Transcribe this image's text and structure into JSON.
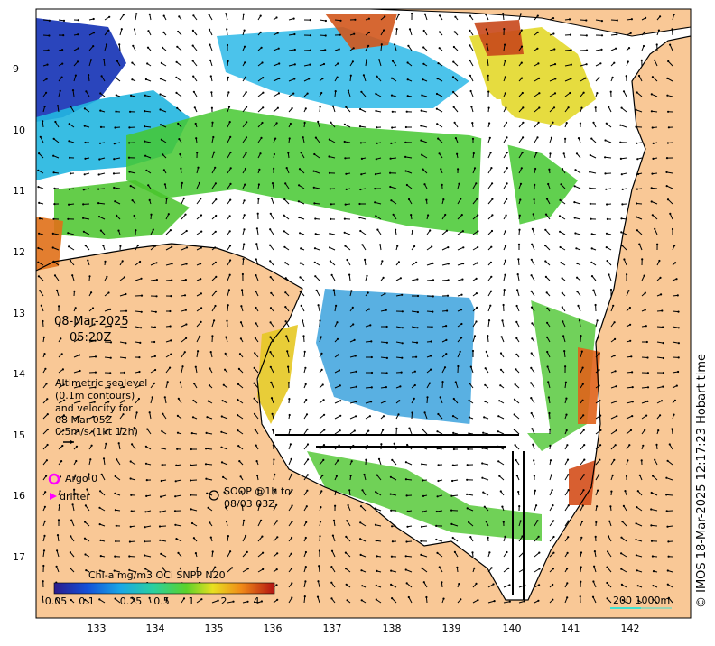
{
  "map": {
    "date": "08-Mar-2025",
    "time": "05:20Z",
    "legend_lines": [
      "Altimetric sealevel",
      "(0.1m contours)",
      "and velocity for",
      "08 Mar 05Z",
      "0.5m/s (1kt 12h)"
    ],
    "argo_label": "Argo 0",
    "drifter_label": "drifter",
    "soop_lines": [
      "SOOP @1h to",
      "08/03 03Z"
    ],
    "colorbar_title": "Chl-a mg/m3 OCi SNPP N20",
    "colorbar_ticks": [
      "0.05",
      "0.1",
      "0.25",
      "0.5",
      "1",
      "2",
      "4"
    ],
    "scale_label": "200  1000m",
    "credit": "© IMOS 18-Mar-2025 12:17:23 Hobart time",
    "lon_ticks": [
      "133",
      "134",
      "135",
      "136",
      "137",
      "138",
      "139",
      "140",
      "141",
      "142"
    ],
    "lat_ticks": [
      "9",
      "10",
      "11",
      "12",
      "13",
      "14",
      "15",
      "16",
      "17"
    ],
    "colors": {
      "land": "#f9c896",
      "ocean_blank": "#ffffff",
      "argo": "#ff00ff",
      "drifter": "#ff00ff",
      "scale_line": "#40e0d0"
    }
  }
}
